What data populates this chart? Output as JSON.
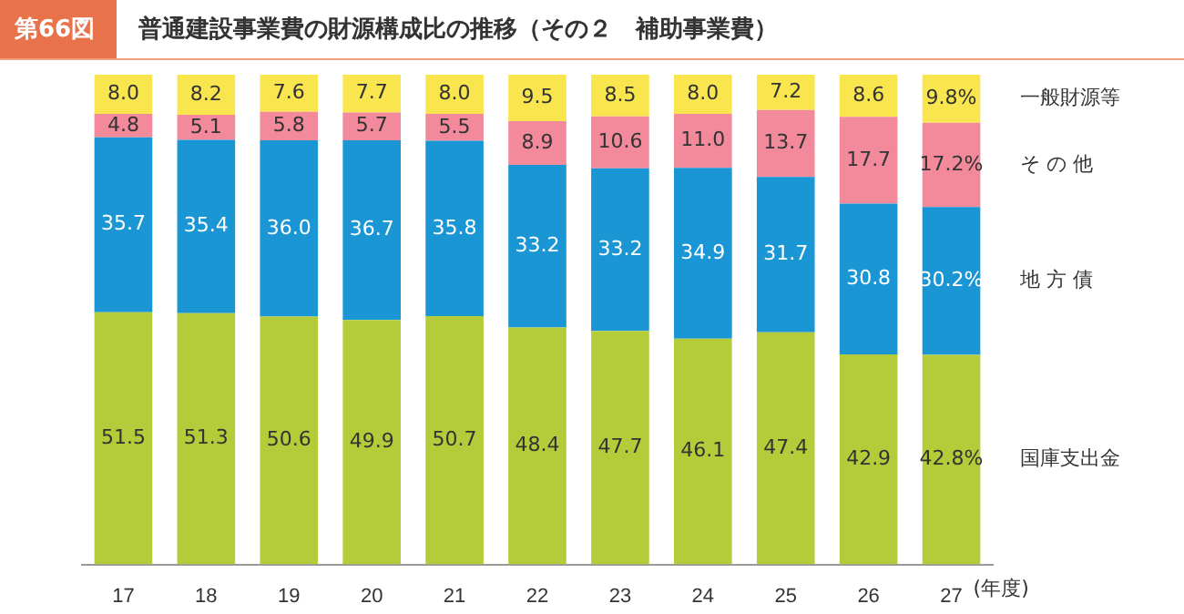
{
  "chart_data": {
    "type": "bar",
    "stacked": true,
    "title": "普通建設事業費の財源構成比の推移（その２　補助事業費）",
    "annotations": [
      "第66図"
    ],
    "xlabel": "(年度)",
    "categories": [
      "17",
      "18",
      "19",
      "20",
      "21",
      "22",
      "23",
      "24",
      "25",
      "26",
      "27"
    ],
    "ylim": [
      0,
      100
    ],
    "tick_labels": "x",
    "grid": false,
    "series": [
      {
        "name": "国庫支出金",
        "color": "#b5cc3a",
        "values": [
          51.5,
          51.3,
          50.6,
          49.9,
          50.7,
          48.4,
          47.7,
          46.1,
          47.4,
          42.9,
          42.8
        ],
        "value_labels": [
          "51.5",
          "51.3",
          "50.6",
          "49.9",
          "50.7",
          "48.4",
          "47.7",
          "46.1",
          "47.4",
          "42.9",
          "42.8%"
        ]
      },
      {
        "name": "地 方 債",
        "color": "#1a96d4",
        "values": [
          35.7,
          35.4,
          36.0,
          36.7,
          35.8,
          33.2,
          33.2,
          34.9,
          31.7,
          30.8,
          30.2
        ],
        "value_labels": [
          "35.7",
          "35.4",
          "36.0",
          "36.7",
          "35.8",
          "33.2",
          "33.2",
          "34.9",
          "31.7",
          "30.8",
          "30.2%"
        ]
      },
      {
        "name": "そ の 他",
        "color": "#f28a9c",
        "values": [
          4.8,
          5.1,
          5.8,
          5.7,
          5.5,
          8.9,
          10.6,
          11.0,
          13.7,
          17.7,
          17.2
        ],
        "value_labels": [
          "4.8",
          "5.1",
          "5.8",
          "5.7",
          "5.5",
          "8.9",
          "10.6",
          "11.0",
          "13.7",
          "17.7",
          "17.2%"
        ]
      },
      {
        "name": "一般財源等",
        "color": "#f9e64f",
        "values": [
          8.0,
          8.2,
          7.6,
          7.7,
          8.0,
          9.5,
          8.5,
          8.0,
          7.2,
          8.6,
          9.8
        ],
        "value_labels": [
          "8.0",
          "8.2",
          "7.6",
          "7.7",
          "8.0",
          "9.5",
          "8.5",
          "8.0",
          "7.2",
          "8.6",
          "9.8%"
        ]
      }
    ]
  }
}
